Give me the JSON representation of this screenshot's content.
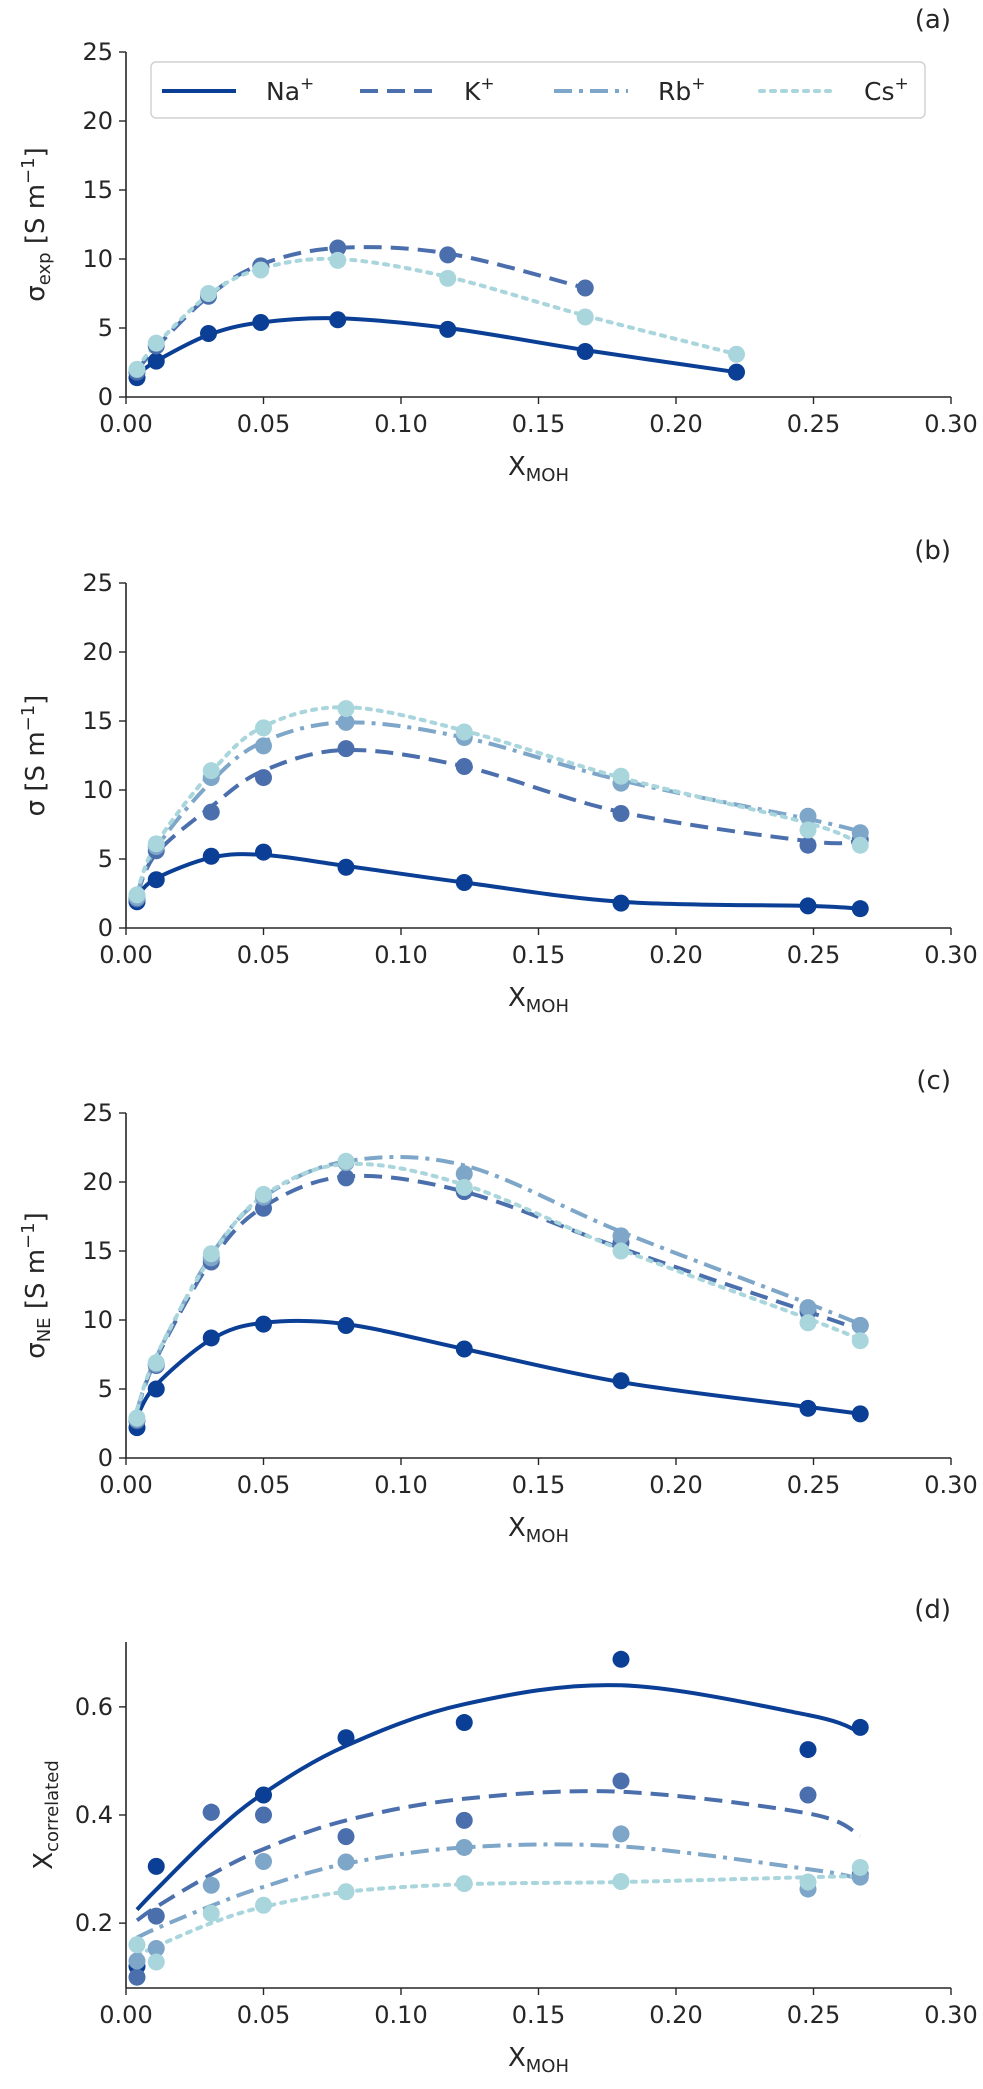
{
  "figure": {
    "colors": {
      "Na": "#0a3f95",
      "K": "#4b6fad",
      "Rb": "#7ea6c8",
      "Cs": "#a9d5dc",
      "axis": "#262626"
    }
  },
  "legend": {
    "entries": [
      {
        "key": "Na",
        "label": "Na",
        "sup": "+",
        "style": "solid"
      },
      {
        "key": "K",
        "label": "K",
        "sup": "+",
        "style": "dashed"
      },
      {
        "key": "Rb",
        "label": "Rb",
        "sup": "+",
        "style": "dashdot"
      },
      {
        "key": "Cs",
        "label": "Cs",
        "sup": "+",
        "style": "dotted"
      }
    ]
  },
  "chart_data": [
    {
      "type": "line",
      "panel": "(a)",
      "xlabel": "X",
      "xlabel_sub": "MOH",
      "ylabel": "σ",
      "ylabel_sub": "exp",
      "ylabel_unit": " [S m",
      "ylabel_unit_sup": "−1",
      "ylabel_unit_end": "]",
      "xlim": [
        0,
        0.3
      ],
      "ylim": [
        0,
        25
      ],
      "xticks": [
        "0.00",
        "0.05",
        "0.10",
        "0.15",
        "0.20",
        "0.25",
        "0.30"
      ],
      "yticks": [
        "0",
        "5",
        "10",
        "15",
        "20",
        "25"
      ],
      "series": [
        {
          "name": "Na",
          "style": "solid",
          "x": [
            0.004,
            0.011,
            0.03,
            0.049,
            0.077,
            0.117,
            0.167,
            0.222
          ],
          "points": [
            1.4,
            2.6,
            4.6,
            5.4,
            5.6,
            4.9,
            3.3,
            1.8
          ],
          "fit": [
            1.6,
            2.6,
            4.5,
            5.4,
            5.7,
            5.0,
            3.4,
            1.8
          ]
        },
        {
          "name": "K",
          "style": "dashed",
          "x": [
            0.004,
            0.011,
            0.03,
            0.049,
            0.077,
            0.117,
            0.167
          ],
          "points": [
            1.8,
            3.7,
            7.3,
            9.5,
            10.8,
            10.3,
            7.9
          ],
          "fit": [
            1.9,
            3.6,
            7.3,
            9.6,
            10.8,
            10.4,
            7.9
          ]
        },
        {
          "name": "Rb",
          "style": "dashdot",
          "x": [],
          "points": [],
          "fit": []
        },
        {
          "name": "Cs",
          "style": "dotted",
          "x": [
            0.004,
            0.011,
            0.03,
            0.049,
            0.077,
            0.117,
            0.167,
            0.222
          ],
          "points": [
            2.0,
            3.9,
            7.5,
            9.2,
            9.9,
            8.6,
            5.8,
            3.1
          ],
          "fit": [
            2.1,
            3.8,
            7.4,
            9.3,
            10.0,
            8.7,
            5.9,
            3.1
          ]
        }
      ]
    },
    {
      "type": "line",
      "panel": "(b)",
      "xlabel": "X",
      "xlabel_sub": "MOH",
      "ylabel": "σ",
      "ylabel_sub": "",
      "ylabel_unit": " [S m",
      "ylabel_unit_sup": "−1",
      "ylabel_unit_end": "]",
      "xlim": [
        0,
        0.3
      ],
      "ylim": [
        0,
        25
      ],
      "xticks": [
        "0.00",
        "0.05",
        "0.10",
        "0.15",
        "0.20",
        "0.25",
        "0.30"
      ],
      "yticks": [
        "0",
        "5",
        "10",
        "15",
        "20",
        "25"
      ],
      "series": [
        {
          "name": "Na",
          "style": "solid",
          "x": [
            0.004,
            0.011,
            0.031,
            0.05,
            0.08,
            0.123,
            0.18,
            0.248,
            0.267
          ],
          "points": [
            1.9,
            3.5,
            5.2,
            5.5,
            4.4,
            3.3,
            1.8,
            1.6,
            1.4
          ],
          "fit": [
            2.3,
            3.6,
            5.1,
            5.3,
            4.5,
            3.3,
            1.9,
            1.6,
            1.4
          ]
        },
        {
          "name": "K",
          "style": "dashed",
          "x": [
            0.004,
            0.011,
            0.031,
            0.05,
            0.08,
            0.123,
            0.18,
            0.248,
            0.267
          ],
          "points": [
            2.1,
            5.6,
            8.4,
            10.9,
            13.0,
            11.7,
            8.3,
            6.0,
            6.4
          ],
          "fit": [
            2.4,
            5.4,
            8.8,
            11.4,
            12.9,
            11.7,
            8.4,
            6.3,
            6.3
          ]
        },
        {
          "name": "Rb",
          "style": "dashdot",
          "x": [
            0.004,
            0.011,
            0.031,
            0.05,
            0.08,
            0.123,
            0.18,
            0.248,
            0.267
          ],
          "points": [
            2.2,
            5.9,
            10.9,
            13.2,
            14.9,
            13.8,
            10.5,
            8.1,
            6.9
          ],
          "fit": [
            2.5,
            5.8,
            10.6,
            13.5,
            14.9,
            13.8,
            10.7,
            7.9,
            7.0
          ]
        },
        {
          "name": "Cs",
          "style": "dotted",
          "x": [
            0.004,
            0.011,
            0.031,
            0.05,
            0.08,
            0.123,
            0.18,
            0.248,
            0.267
          ],
          "points": [
            2.4,
            6.1,
            11.4,
            14.5,
            15.9,
            14.2,
            11.0,
            7.1,
            6.0
          ],
          "fit": [
            2.6,
            6.1,
            11.3,
            14.6,
            16.0,
            14.3,
            10.9,
            7.6,
            6.1
          ]
        }
      ]
    },
    {
      "type": "line",
      "panel": "(c)",
      "xlabel": "X",
      "xlabel_sub": "MOH",
      "ylabel": "σ",
      "ylabel_sub": "NE",
      "ylabel_unit": " [S m",
      "ylabel_unit_sup": "−1",
      "ylabel_unit_end": "]",
      "xlim": [
        0,
        0.3
      ],
      "ylim": [
        0,
        25
      ],
      "xticks": [
        "0.00",
        "0.05",
        "0.10",
        "0.15",
        "0.20",
        "0.25",
        "0.30"
      ],
      "yticks": [
        "0",
        "5",
        "10",
        "15",
        "20",
        "25"
      ],
      "series": [
        {
          "name": "Na",
          "style": "solid",
          "x": [
            0.004,
            0.011,
            0.031,
            0.05,
            0.08,
            0.123,
            0.18,
            0.248,
            0.267
          ],
          "points": [
            2.2,
            5.0,
            8.7,
            9.7,
            9.6,
            7.9,
            5.6,
            3.6,
            3.2
          ],
          "fit": [
            3.0,
            5.3,
            8.6,
            9.8,
            9.7,
            7.9,
            5.5,
            3.7,
            3.2
          ]
        },
        {
          "name": "K",
          "style": "dashed",
          "x": [
            0.004,
            0.011,
            0.031,
            0.05,
            0.08,
            0.123,
            0.18,
            0.248,
            0.267
          ],
          "points": [
            2.7,
            6.7,
            14.2,
            18.1,
            20.3,
            19.3,
            15.6,
            10.6,
            9.6
          ],
          "fit": [
            3.4,
            7.2,
            14.3,
            18.2,
            20.4,
            19.3,
            15.2,
            10.6,
            9.3
          ]
        },
        {
          "name": "Rb",
          "style": "dashdot",
          "x": [
            0.004,
            0.011,
            0.031,
            0.05,
            0.08,
            0.123,
            0.18,
            0.248,
            0.267
          ],
          "points": [
            2.8,
            6.8,
            14.5,
            18.9,
            21.4,
            20.6,
            16.1,
            10.9,
            9.6
          ],
          "fit": [
            3.5,
            7.3,
            14.7,
            18.9,
            21.5,
            21.2,
            16.4,
            11.2,
            9.7
          ]
        },
        {
          "name": "Cs",
          "style": "dotted",
          "x": [
            0.004,
            0.011,
            0.031,
            0.05,
            0.08,
            0.123,
            0.18,
            0.248,
            0.267
          ],
          "points": [
            2.9,
            6.9,
            14.8,
            19.1,
            21.5,
            19.6,
            15.0,
            9.8,
            8.5
          ],
          "fit": [
            3.5,
            7.4,
            14.6,
            19.0,
            21.3,
            19.8,
            15.1,
            10.1,
            8.6
          ]
        }
      ]
    },
    {
      "type": "line",
      "panel": "(d)",
      "xlabel": "X",
      "xlabel_sub": "MOH",
      "ylabel": "X",
      "ylabel_sub": "correlated",
      "ylabel_unit": "",
      "ylabel_unit_sup": "",
      "ylabel_unit_end": "",
      "xlim": [
        0,
        0.3
      ],
      "ylim": [
        0.08,
        0.72
      ],
      "xticks": [
        "0.00",
        "0.05",
        "0.10",
        "0.15",
        "0.20",
        "0.25",
        "0.30"
      ],
      "yticks": [
        "0.2",
        "0.4",
        "0.6"
      ],
      "series": [
        {
          "name": "Na",
          "style": "solid",
          "x": [
            0.004,
            0.011,
            0.031,
            0.05,
            0.08,
            0.123,
            0.18,
            0.248,
            0.267
          ],
          "points": [
            0.12,
            0.305,
            0.405,
            0.437,
            0.543,
            0.571,
            0.688,
            0.521,
            0.562
          ],
          "fit": [
            0.225,
            0.262,
            0.362,
            0.44,
            0.528,
            0.605,
            0.64,
            0.585,
            0.553
          ]
        },
        {
          "name": "K",
          "style": "dashed",
          "x": [
            0.004,
            0.011,
            0.031,
            0.05,
            0.08,
            0.123,
            0.18,
            0.248,
            0.267
          ],
          "points": [
            0.1,
            0.213,
            0.405,
            0.4,
            0.36,
            0.39,
            0.463,
            0.437,
            0.29
          ],
          "fit": [
            0.205,
            0.23,
            0.29,
            0.337,
            0.39,
            0.43,
            0.443,
            0.403,
            0.362
          ]
        },
        {
          "name": "Rb",
          "style": "dashdot",
          "x": [
            0.004,
            0.011,
            0.031,
            0.05,
            0.08,
            0.123,
            0.18,
            0.248,
            0.267
          ],
          "points": [
            0.13,
            0.153,
            0.27,
            0.314,
            0.313,
            0.34,
            0.365,
            0.263,
            0.285
          ],
          "fit": [
            0.173,
            0.19,
            0.232,
            0.267,
            0.31,
            0.34,
            0.342,
            0.3,
            0.282
          ]
        },
        {
          "name": "Cs",
          "style": "dotted",
          "x": [
            0.004,
            0.011,
            0.031,
            0.05,
            0.08,
            0.123,
            0.18,
            0.248,
            0.267
          ],
          "points": [
            0.16,
            0.128,
            0.218,
            0.233,
            0.258,
            0.273,
            0.277,
            0.276,
            0.303
          ],
          "fit": [
            0.14,
            0.157,
            0.2,
            0.23,
            0.258,
            0.272,
            0.276,
            0.285,
            0.287
          ]
        }
      ]
    }
  ]
}
